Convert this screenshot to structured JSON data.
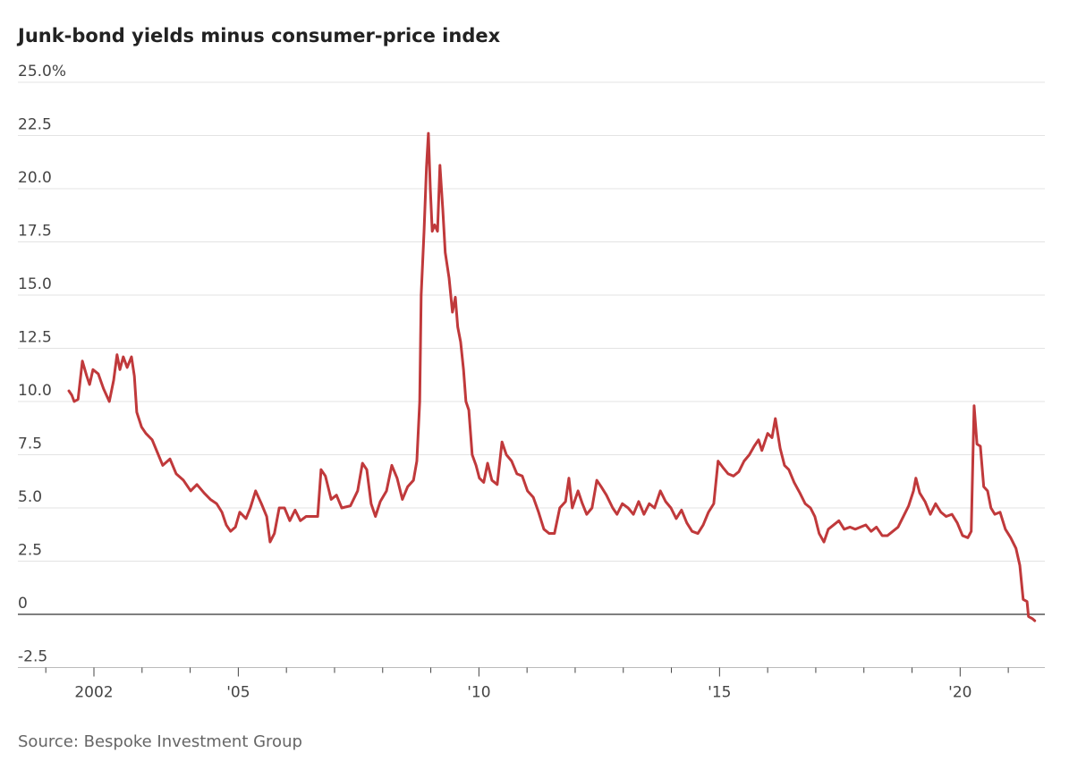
{
  "chart_data": {
    "type": "line",
    "title": "Junk-bond yields minus consumer-price index",
    "source": "Source: Bespoke Investment Group",
    "color": "#c0393b",
    "grid": true,
    "xlim": [
      2000.42,
      2021.76
    ],
    "ylim": [
      -2.5,
      25
    ],
    "yticks": [
      -2.5,
      0,
      2.5,
      {
        "value": 5,
        "label": "5.0"
      },
      7.5,
      {
        "value": 10,
        "label": "10.0"
      },
      12.5,
      {
        "value": 15,
        "label": "15.0"
      },
      17.5,
      {
        "value": 20,
        "label": "20.0"
      },
      22.5,
      {
        "value": 25,
        "label": "25.0%"
      }
    ],
    "xticks": [
      {
        "value": 2002,
        "label": "2002"
      },
      {
        "value": 2005,
        "label": "'05"
      },
      {
        "value": 2010,
        "label": "'10"
      },
      {
        "value": 2015,
        "label": "'15"
      },
      {
        "value": 2020,
        "label": "'20"
      }
    ],
    "xminor_ticks": [
      2001,
      2003,
      2004,
      2006,
      2007,
      2008,
      2009,
      2011,
      2012,
      2013,
      2014,
      2016,
      2017,
      2018,
      2019,
      2021
    ],
    "x": [
      2001.48,
      2001.54,
      2001.59,
      2001.67,
      2001.76,
      2001.85,
      2001.91,
      2001.98,
      2002.09,
      2002.2,
      2002.32,
      2002.41,
      2002.48,
      2002.54,
      2002.61,
      2002.69,
      2002.78,
      2002.84,
      2002.89,
      2002.99,
      2003.08,
      2003.21,
      2003.32,
      2003.43,
      2003.58,
      2003.71,
      2003.86,
      2004.01,
      2004.14,
      2004.29,
      2004.42,
      2004.55,
      2004.66,
      2004.75,
      2004.84,
      2004.94,
      2005.03,
      2005.16,
      2005.25,
      2005.36,
      2005.48,
      2005.59,
      2005.66,
      2005.75,
      2005.85,
      2005.96,
      2006.07,
      2006.18,
      2006.29,
      2006.41,
      2006.65,
      2006.72,
      2006.81,
      2006.93,
      2007.04,
      2007.15,
      2007.33,
      2007.48,
      2007.58,
      2007.67,
      2007.76,
      2007.85,
      2007.95,
      2008.08,
      2008.19,
      2008.3,
      2008.41,
      2008.52,
      2008.64,
      2008.71,
      2008.77,
      2008.8,
      2008.86,
      2008.91,
      2008.95,
      2008.99,
      2009.03,
      2009.08,
      2009.14,
      2009.19,
      2009.25,
      2009.3,
      2009.38,
      2009.45,
      2009.51,
      2009.56,
      2009.62,
      2009.68,
      2009.73,
      2009.79,
      2009.86,
      2009.94,
      2010.01,
      2010.1,
      2010.18,
      2010.27,
      2010.38,
      2010.48,
      2010.57,
      2010.68,
      2010.79,
      2010.9,
      2011.01,
      2011.13,
      2011.24,
      2011.35,
      2011.46,
      2011.57,
      2011.68,
      2011.8,
      2011.87,
      2011.94,
      2012.06,
      2012.15,
      2012.24,
      2012.35,
      2012.45,
      2012.54,
      2012.65,
      2012.78,
      2012.87,
      2012.98,
      2013.1,
      2013.21,
      2013.32,
      2013.43,
      2013.54,
      2013.65,
      2013.77,
      2013.88,
      2013.99,
      2014.1,
      2014.21,
      2014.32,
      2014.43,
      2014.55,
      2014.66,
      2014.77,
      2014.88,
      2014.97,
      2015.07,
      2015.18,
      2015.29,
      2015.4,
      2015.51,
      2015.62,
      2015.72,
      2015.81,
      2015.88,
      2016.0,
      2016.09,
      2016.16,
      2016.26,
      2016.35,
      2016.44,
      2016.55,
      2016.67,
      2016.78,
      2016.89,
      2016.98,
      2017.07,
      2017.17,
      2017.26,
      2017.37,
      2017.48,
      2017.59,
      2017.71,
      2017.82,
      2017.93,
      2018.04,
      2018.15,
      2018.26,
      2018.38,
      2018.49,
      2018.6,
      2018.71,
      2018.82,
      2018.93,
      2019.03,
      2019.08,
      2019.16,
      2019.27,
      2019.38,
      2019.49,
      2019.6,
      2019.71,
      2019.83,
      2019.94,
      2020.05,
      2020.16,
      2020.23,
      2020.29,
      2020.35,
      2020.42,
      2020.49,
      2020.57,
      2020.64,
      2020.72,
      2020.83,
      2020.94,
      2021.05,
      2021.16,
      2021.24,
      2021.31,
      2021.39,
      2021.42,
      2021.5,
      2021.55
    ],
    "values": [
      10.5,
      10.3,
      10.0,
      10.1,
      11.9,
      11.2,
      10.8,
      11.5,
      11.3,
      10.6,
      10.0,
      11.0,
      12.2,
      11.5,
      12.1,
      11.6,
      12.1,
      11.2,
      9.5,
      8.8,
      8.5,
      8.2,
      7.6,
      7.0,
      7.3,
      6.6,
      6.3,
      5.8,
      6.1,
      5.7,
      5.4,
      5.2,
      4.8,
      4.2,
      3.9,
      4.1,
      4.8,
      4.5,
      5.0,
      5.8,
      5.2,
      4.6,
      3.4,
      3.8,
      5.0,
      5.0,
      4.4,
      4.9,
      4.4,
      4.6,
      4.6,
      6.8,
      6.5,
      5.4,
      5.6,
      5.0,
      5.1,
      5.8,
      7.1,
      6.8,
      5.2,
      4.6,
      5.3,
      5.8,
      7.0,
      6.4,
      5.4,
      6.0,
      6.3,
      7.2,
      10.0,
      15.0,
      18.0,
      21.0,
      22.6,
      20.0,
      18.0,
      18.3,
      18.0,
      21.1,
      19.0,
      17.0,
      15.8,
      14.2,
      14.9,
      13.5,
      12.8,
      11.5,
      10.0,
      9.6,
      7.5,
      7.0,
      6.4,
      6.2,
      7.1,
      6.3,
      6.1,
      8.1,
      7.5,
      7.2,
      6.6,
      6.5,
      5.8,
      5.5,
      4.8,
      4.0,
      3.8,
      3.8,
      5.0,
      5.3,
      6.4,
      5.0,
      5.8,
      5.2,
      4.7,
      5.0,
      6.3,
      6.0,
      5.6,
      5.0,
      4.7,
      5.2,
      5.0,
      4.7,
      5.3,
      4.7,
      5.2,
      5.0,
      5.8,
      5.3,
      5.0,
      4.5,
      4.9,
      4.3,
      3.9,
      3.8,
      4.2,
      4.8,
      5.2,
      7.2,
      6.9,
      6.6,
      6.5,
      6.7,
      7.2,
      7.5,
      7.9,
      8.2,
      7.7,
      8.5,
      8.3,
      9.2,
      7.8,
      7.0,
      6.8,
      6.2,
      5.7,
      5.2,
      5.0,
      4.6,
      3.8,
      3.4,
      4.0,
      4.2,
      4.4,
      4.0,
      4.1,
      4.0,
      4.1,
      4.2,
      3.9,
      4.1,
      3.7,
      3.7,
      3.9,
      4.1,
      4.6,
      5.1,
      5.8,
      6.4,
      5.7,
      5.3,
      4.7,
      5.2,
      4.8,
      4.6,
      4.7,
      4.3,
      3.7,
      3.6,
      3.9,
      9.8,
      8.0,
      7.9,
      6.0,
      5.8,
      5.0,
      4.7,
      4.8,
      4.0,
      3.6,
      3.1,
      2.3,
      0.7,
      0.6,
      -0.1,
      -0.2,
      -0.3
    ]
  }
}
